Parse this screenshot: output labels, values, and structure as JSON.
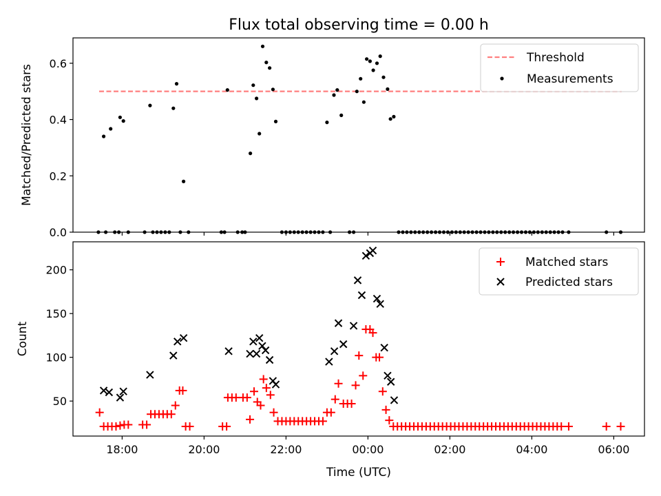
{
  "title": "Flux total observing time = 0.00 h",
  "chart_data": [
    {
      "type": "scatter",
      "panel": "top",
      "ylabel": "Matched/Predicted stars",
      "ylim": [
        0,
        0.69
      ],
      "yticks": [
        0.0,
        0.2,
        0.4,
        0.6
      ],
      "ytick_labels": [
        "0.0",
        "0.2",
        "0.4",
        "0.6"
      ],
      "threshold": 0.5,
      "legend_position": "top-right",
      "legend": [
        {
          "label": "Threshold",
          "kind": "dashed-line",
          "color": "#ff7f7f"
        },
        {
          "label": "Measurements",
          "kind": "dot",
          "color": "#000000"
        }
      ],
      "series": [
        {
          "name": "Measurements",
          "color": "#000000",
          "points": [
            [
              17.55,
              0.34
            ],
            [
              17.72,
              0.367
            ],
            [
              17.95,
              0.408
            ],
            [
              18.03,
              0.395
            ],
            [
              18.68,
              0.45
            ],
            [
              19.25,
              0.44
            ],
            [
              19.33,
              0.527
            ],
            [
              19.5,
              0.18
            ],
            [
              20.57,
              0.505
            ],
            [
              21.13,
              0.28
            ],
            [
              21.2,
              0.522
            ],
            [
              21.28,
              0.475
            ],
            [
              21.35,
              0.35
            ],
            [
              21.43,
              0.66
            ],
            [
              21.52,
              0.603
            ],
            [
              21.6,
              0.583
            ],
            [
              21.68,
              0.507
            ],
            [
              21.75,
              0.393
            ],
            [
              23.0,
              0.39
            ],
            [
              23.17,
              0.487
            ],
            [
              23.25,
              0.505
            ],
            [
              23.35,
              0.415
            ],
            [
              23.73,
              0.5
            ],
            [
              23.82,
              0.545
            ],
            [
              23.9,
              0.462
            ],
            [
              23.97,
              0.615
            ],
            [
              24.05,
              0.607
            ],
            [
              24.13,
              0.575
            ],
            [
              24.22,
              0.6
            ],
            [
              24.3,
              0.625
            ],
            [
              24.38,
              0.55
            ],
            [
              24.48,
              0.508
            ],
            [
              24.55,
              0.402
            ],
            [
              24.63,
              0.41
            ],
            [
              17.42,
              0.0
            ],
            [
              17.6,
              0.0
            ],
            [
              17.82,
              0.0
            ],
            [
              17.92,
              0.0
            ],
            [
              18.15,
              0.0
            ],
            [
              18.55,
              0.0
            ],
            [
              18.75,
              0.0
            ],
            [
              18.85,
              0.0
            ],
            [
              18.95,
              0.0
            ],
            [
              19.05,
              0.0
            ],
            [
              19.15,
              0.0
            ],
            [
              19.42,
              0.0
            ],
            [
              19.62,
              0.0
            ],
            [
              20.42,
              0.0
            ],
            [
              20.5,
              0.0
            ],
            [
              20.82,
              0.0
            ],
            [
              20.93,
              0.0
            ],
            [
              21.0,
              0.0
            ],
            [
              21.9,
              0.0
            ],
            [
              22.0,
              0.0
            ],
            [
              22.1,
              0.0
            ],
            [
              22.2,
              0.0
            ],
            [
              22.3,
              0.0
            ],
            [
              22.4,
              0.0
            ],
            [
              22.5,
              0.0
            ],
            [
              22.6,
              0.0
            ],
            [
              22.7,
              0.0
            ],
            [
              22.8,
              0.0
            ],
            [
              22.9,
              0.0
            ],
            [
              23.08,
              0.0
            ],
            [
              23.55,
              0.0
            ],
            [
              23.65,
              0.0
            ],
            [
              24.75,
              0.0
            ],
            [
              24.85,
              0.0
            ],
            [
              24.95,
              0.0
            ],
            [
              25.05,
              0.0
            ],
            [
              25.15,
              0.0
            ],
            [
              25.25,
              0.0
            ],
            [
              25.35,
              0.0
            ],
            [
              25.45,
              0.0
            ],
            [
              25.55,
              0.0
            ],
            [
              25.65,
              0.0
            ],
            [
              25.75,
              0.0
            ],
            [
              25.85,
              0.0
            ],
            [
              25.95,
              0.0
            ],
            [
              26.05,
              0.0
            ],
            [
              26.15,
              0.0
            ],
            [
              26.25,
              0.0
            ],
            [
              26.35,
              0.0
            ],
            [
              26.45,
              0.0
            ],
            [
              26.55,
              0.0
            ],
            [
              26.65,
              0.0
            ],
            [
              26.75,
              0.0
            ],
            [
              26.85,
              0.0
            ],
            [
              26.95,
              0.0
            ],
            [
              27.05,
              0.0
            ],
            [
              27.15,
              0.0
            ],
            [
              27.25,
              0.0
            ],
            [
              27.35,
              0.0
            ],
            [
              27.45,
              0.0
            ],
            [
              27.55,
              0.0
            ],
            [
              27.65,
              0.0
            ],
            [
              27.75,
              0.0
            ],
            [
              27.85,
              0.0
            ],
            [
              27.95,
              0.0
            ],
            [
              28.05,
              0.0
            ],
            [
              28.15,
              0.0
            ],
            [
              28.25,
              0.0
            ],
            [
              28.35,
              0.0
            ],
            [
              28.45,
              0.0
            ],
            [
              28.55,
              0.0
            ],
            [
              28.65,
              0.0
            ],
            [
              28.75,
              0.0
            ],
            [
              28.9,
              0.0
            ],
            [
              29.82,
              0.0
            ],
            [
              30.17,
              0.0
            ]
          ]
        }
      ]
    },
    {
      "type": "scatter",
      "panel": "bottom",
      "xlabel": "Time (UTC)",
      "ylabel": "Count",
      "xlim": [
        16.8,
        30.75
      ],
      "ylim": [
        10,
        232
      ],
      "xticks": [
        18,
        20,
        22,
        24,
        26,
        28,
        30
      ],
      "xtick_labels": [
        "18:00",
        "20:00",
        "22:00",
        "00:00",
        "02:00",
        "04:00",
        "06:00"
      ],
      "yticks": [
        50,
        100,
        150,
        200
      ],
      "ytick_labels": [
        "50",
        "100",
        "150",
        "200"
      ],
      "legend_position": "top-right",
      "legend": [
        {
          "label": "Matched stars",
          "kind": "plus",
          "color": "#ff0000"
        },
        {
          "label": "Predicted stars",
          "kind": "x",
          "color": "#000000"
        }
      ],
      "series": [
        {
          "name": "Matched stars",
          "marker": "plus",
          "color": "#ff0000",
          "points": [
            [
              17.45,
              37
            ],
            [
              17.55,
              21
            ],
            [
              17.65,
              21
            ],
            [
              17.75,
              21
            ],
            [
              17.85,
              21
            ],
            [
              17.95,
              22
            ],
            [
              18.05,
              23
            ],
            [
              18.15,
              23
            ],
            [
              18.5,
              23
            ],
            [
              18.6,
              23
            ],
            [
              18.7,
              35
            ],
            [
              18.8,
              35
            ],
            [
              18.9,
              35
            ],
            [
              19.0,
              35
            ],
            [
              19.1,
              35
            ],
            [
              19.2,
              35
            ],
            [
              19.3,
              45
            ],
            [
              19.4,
              62
            ],
            [
              19.48,
              62
            ],
            [
              19.55,
              21
            ],
            [
              19.65,
              21
            ],
            [
              20.45,
              21
            ],
            [
              20.55,
              21
            ],
            [
              20.58,
              54
            ],
            [
              20.68,
              54
            ],
            [
              20.78,
              54
            ],
            [
              20.95,
              54
            ],
            [
              21.05,
              54
            ],
            [
              21.12,
              29
            ],
            [
              21.22,
              61
            ],
            [
              21.3,
              49
            ],
            [
              21.38,
              45
            ],
            [
              21.45,
              75
            ],
            [
              21.52,
              65
            ],
            [
              21.62,
              57
            ],
            [
              21.7,
              37
            ],
            [
              21.8,
              27
            ],
            [
              21.9,
              27
            ],
            [
              22.0,
              27
            ],
            [
              22.1,
              27
            ],
            [
              22.2,
              27
            ],
            [
              22.3,
              27
            ],
            [
              22.4,
              27
            ],
            [
              22.5,
              27
            ],
            [
              22.6,
              27
            ],
            [
              22.7,
              27
            ],
            [
              22.8,
              27
            ],
            [
              22.9,
              27
            ],
            [
              23.0,
              37
            ],
            [
              23.1,
              37
            ],
            [
              23.2,
              52
            ],
            [
              23.28,
              70
            ],
            [
              23.4,
              47
            ],
            [
              23.5,
              47
            ],
            [
              23.6,
              47
            ],
            [
              23.7,
              68
            ],
            [
              23.78,
              102
            ],
            [
              23.88,
              79
            ],
            [
              23.95,
              132
            ],
            [
              24.05,
              132
            ],
            [
              24.12,
              128
            ],
            [
              24.2,
              100
            ],
            [
              24.28,
              100
            ],
            [
              24.36,
              61
            ],
            [
              24.44,
              40
            ],
            [
              24.52,
              28
            ],
            [
              24.62,
              21
            ],
            [
              24.72,
              21
            ],
            [
              24.82,
              21
            ],
            [
              24.92,
              21
            ],
            [
              25.02,
              21
            ],
            [
              25.12,
              21
            ],
            [
              25.22,
              21
            ],
            [
              25.32,
              21
            ],
            [
              25.42,
              21
            ],
            [
              25.52,
              21
            ],
            [
              25.62,
              21
            ],
            [
              25.72,
              21
            ],
            [
              25.82,
              21
            ],
            [
              25.92,
              21
            ],
            [
              26.02,
              21
            ],
            [
              26.12,
              21
            ],
            [
              26.22,
              21
            ],
            [
              26.32,
              21
            ],
            [
              26.42,
              21
            ],
            [
              26.52,
              21
            ],
            [
              26.62,
              21
            ],
            [
              26.72,
              21
            ],
            [
              26.82,
              21
            ],
            [
              26.92,
              21
            ],
            [
              27.02,
              21
            ],
            [
              27.12,
              21
            ],
            [
              27.22,
              21
            ],
            [
              27.32,
              21
            ],
            [
              27.42,
              21
            ],
            [
              27.52,
              21
            ],
            [
              27.62,
              21
            ],
            [
              27.72,
              21
            ],
            [
              27.82,
              21
            ],
            [
              27.92,
              21
            ],
            [
              28.02,
              21
            ],
            [
              28.12,
              21
            ],
            [
              28.22,
              21
            ],
            [
              28.32,
              21
            ],
            [
              28.42,
              21
            ],
            [
              28.52,
              21
            ],
            [
              28.62,
              21
            ],
            [
              28.72,
              21
            ],
            [
              28.9,
              21
            ],
            [
              29.82,
              21
            ],
            [
              30.17,
              21
            ]
          ]
        },
        {
          "name": "Predicted stars",
          "marker": "x",
          "color": "#000000",
          "points": [
            [
              17.55,
              62
            ],
            [
              17.68,
              60
            ],
            [
              17.95,
              54
            ],
            [
              18.03,
              61
            ],
            [
              18.68,
              80
            ],
            [
              19.25,
              102
            ],
            [
              19.35,
              118
            ],
            [
              19.5,
              122
            ],
            [
              20.6,
              107
            ],
            [
              21.12,
              104
            ],
            [
              21.2,
              118
            ],
            [
              21.28,
              104
            ],
            [
              21.35,
              122
            ],
            [
              21.42,
              113
            ],
            [
              21.5,
              108
            ],
            [
              21.6,
              97
            ],
            [
              21.68,
              73
            ],
            [
              21.75,
              69
            ],
            [
              23.05,
              95
            ],
            [
              23.18,
              107
            ],
            [
              23.28,
              139
            ],
            [
              23.4,
              115
            ],
            [
              23.65,
              136
            ],
            [
              23.75,
              188
            ],
            [
              23.85,
              171
            ],
            [
              23.95,
              216
            ],
            [
              24.05,
              219
            ],
            [
              24.12,
              222
            ],
            [
              24.22,
              167
            ],
            [
              24.3,
              161
            ],
            [
              24.4,
              111
            ],
            [
              24.48,
              79
            ],
            [
              24.56,
              72
            ],
            [
              24.64,
              51
            ]
          ]
        }
      ]
    }
  ]
}
